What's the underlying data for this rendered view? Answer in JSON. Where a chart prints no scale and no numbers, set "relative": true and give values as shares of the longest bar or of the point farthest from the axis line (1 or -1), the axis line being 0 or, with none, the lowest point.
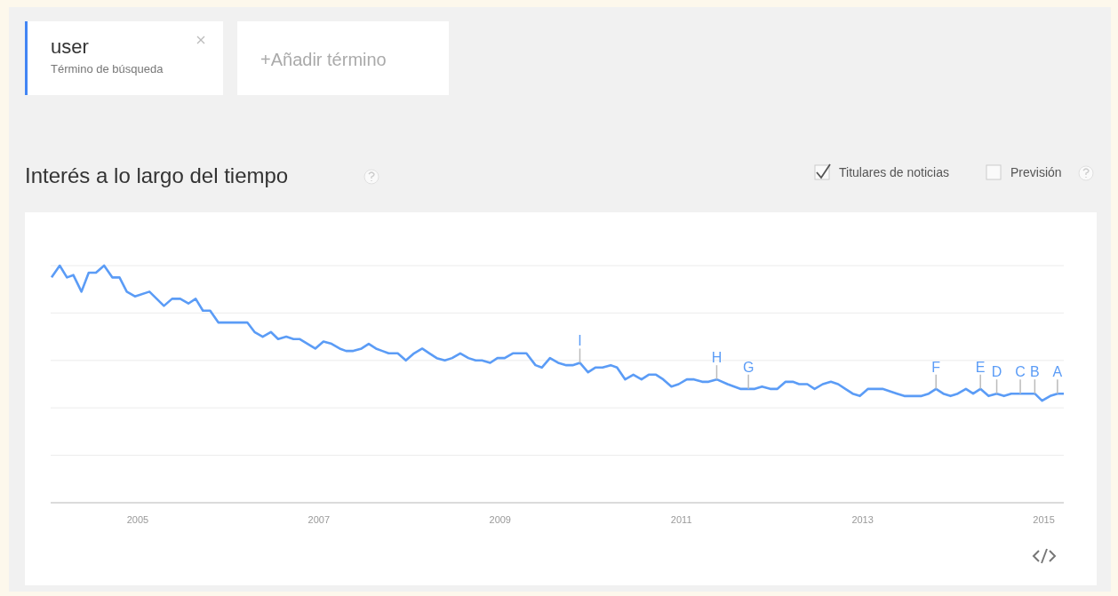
{
  "chart_data": {
    "type": "line",
    "title": "Interés a lo largo del tiempo",
    "relative": true,
    "grid": "y",
    "tick_labels": "x",
    "marker": "none",
    "line_style": "solid",
    "xlim": [
      2004.04,
      2015.22
    ],
    "xticks": [
      2005,
      2007,
      2009,
      2011,
      2013,
      2015
    ],
    "annotations": [
      "user",
      "Término de búsqueda",
      "+Añadir término",
      "Titulares de noticias",
      "Previsión",
      {
        "text": "I",
        "x": 2009.88,
        "y": 0.59
      },
      {
        "text": "H",
        "x": 2011.39,
        "y": 0.52
      },
      {
        "text": "G",
        "x": 2011.74,
        "y": 0.48
      },
      {
        "text": "F",
        "x": 2013.81,
        "y": 0.48
      },
      {
        "text": "E",
        "x": 2014.3,
        "y": 0.48
      },
      {
        "text": "D",
        "x": 2014.48,
        "y": 0.46
      },
      {
        "text": "C",
        "x": 2014.74,
        "y": 0.46
      },
      {
        "text": "B",
        "x": 2014.9,
        "y": 0.46
      },
      {
        "text": "A",
        "x": 2015.15,
        "y": 0.46
      }
    ],
    "series": [
      {
        "color": "#5b9cf6",
        "x": [
          2004.05,
          2004.14,
          2004.22,
          2004.29,
          2004.38,
          2004.46,
          2004.54,
          2004.63,
          2004.72,
          2004.8,
          2004.88,
          2004.97,
          2005.13,
          2005.29,
          2005.38,
          2005.47,
          2005.56,
          2005.64,
          2005.72,
          2005.8,
          2005.89,
          2005.97,
          2006.05,
          2006.13,
          2006.21,
          2006.29,
          2006.38,
          2006.47,
          2006.55,
          2006.64,
          2006.72,
          2006.79,
          2006.96,
          2007.05,
          2007.14,
          2007.23,
          2007.3,
          2007.38,
          2007.47,
          2007.55,
          2007.63,
          2007.7,
          2007.77,
          2007.87,
          2007.96,
          2008.05,
          2008.14,
          2008.22,
          2008.3,
          2008.39,
          2008.47,
          2008.56,
          2008.65,
          2008.73,
          2008.8,
          2008.89,
          2008.97,
          2009.05,
          2009.14,
          2009.29,
          2009.39,
          2009.46,
          2009.55,
          2009.64,
          2009.73,
          2009.8,
          2009.88,
          2009.97,
          2010.05,
          2010.13,
          2010.22,
          2010.29,
          2010.38,
          2010.47,
          2010.56,
          2010.64,
          2010.72,
          2010.8,
          2010.89,
          2010.97,
          2011.06,
          2011.14,
          2011.23,
          2011.3,
          2011.39,
          2011.51,
          2011.65,
          2011.74,
          2011.81,
          2011.89,
          2011.98,
          2012.06,
          2012.15,
          2012.23,
          2012.3,
          2012.39,
          2012.47,
          2012.56,
          2012.65,
          2012.73,
          2012.81,
          2012.89,
          2012.97,
          2013.06,
          2013.14,
          2013.22,
          2013.3,
          2013.38,
          2013.46,
          2013.56,
          2013.65,
          2013.73,
          2013.81,
          2013.89,
          2013.97,
          2014.05,
          2014.14,
          2014.22,
          2014.3,
          2014.39,
          2014.48,
          2014.56,
          2014.64,
          2014.74,
          2014.82,
          2014.9,
          2014.98,
          2015.07,
          2015.15,
          2015.22
        ],
        "values": [
          0.95,
          1.0,
          0.95,
          0.96,
          0.89,
          0.97,
          0.97,
          1.0,
          0.95,
          0.95,
          0.89,
          0.87,
          0.89,
          0.83,
          0.86,
          0.86,
          0.84,
          0.86,
          0.81,
          0.81,
          0.76,
          0.76,
          0.76,
          0.76,
          0.76,
          0.72,
          0.7,
          0.72,
          0.69,
          0.7,
          0.69,
          0.69,
          0.65,
          0.68,
          0.67,
          0.65,
          0.64,
          0.64,
          0.65,
          0.67,
          0.65,
          0.64,
          0.63,
          0.63,
          0.6,
          0.63,
          0.65,
          0.63,
          0.61,
          0.6,
          0.61,
          0.63,
          0.61,
          0.6,
          0.6,
          0.59,
          0.61,
          0.61,
          0.63,
          0.63,
          0.58,
          0.57,
          0.61,
          0.59,
          0.58,
          0.58,
          0.59,
          0.55,
          0.57,
          0.57,
          0.58,
          0.57,
          0.52,
          0.54,
          0.52,
          0.54,
          0.54,
          0.52,
          0.49,
          0.5,
          0.52,
          0.52,
          0.51,
          0.51,
          0.52,
          0.5,
          0.48,
          0.48,
          0.48,
          0.49,
          0.48,
          0.48,
          0.51,
          0.51,
          0.5,
          0.5,
          0.48,
          0.5,
          0.51,
          0.5,
          0.48,
          0.46,
          0.45,
          0.48,
          0.48,
          0.48,
          0.47,
          0.46,
          0.45,
          0.45,
          0.45,
          0.46,
          0.48,
          0.46,
          0.45,
          0.46,
          0.48,
          0.46,
          0.48,
          0.45,
          0.46,
          0.45,
          0.46,
          0.46,
          0.46,
          0.46,
          0.43,
          0.45,
          0.46,
          0.46
        ]
      }
    ]
  }
}
